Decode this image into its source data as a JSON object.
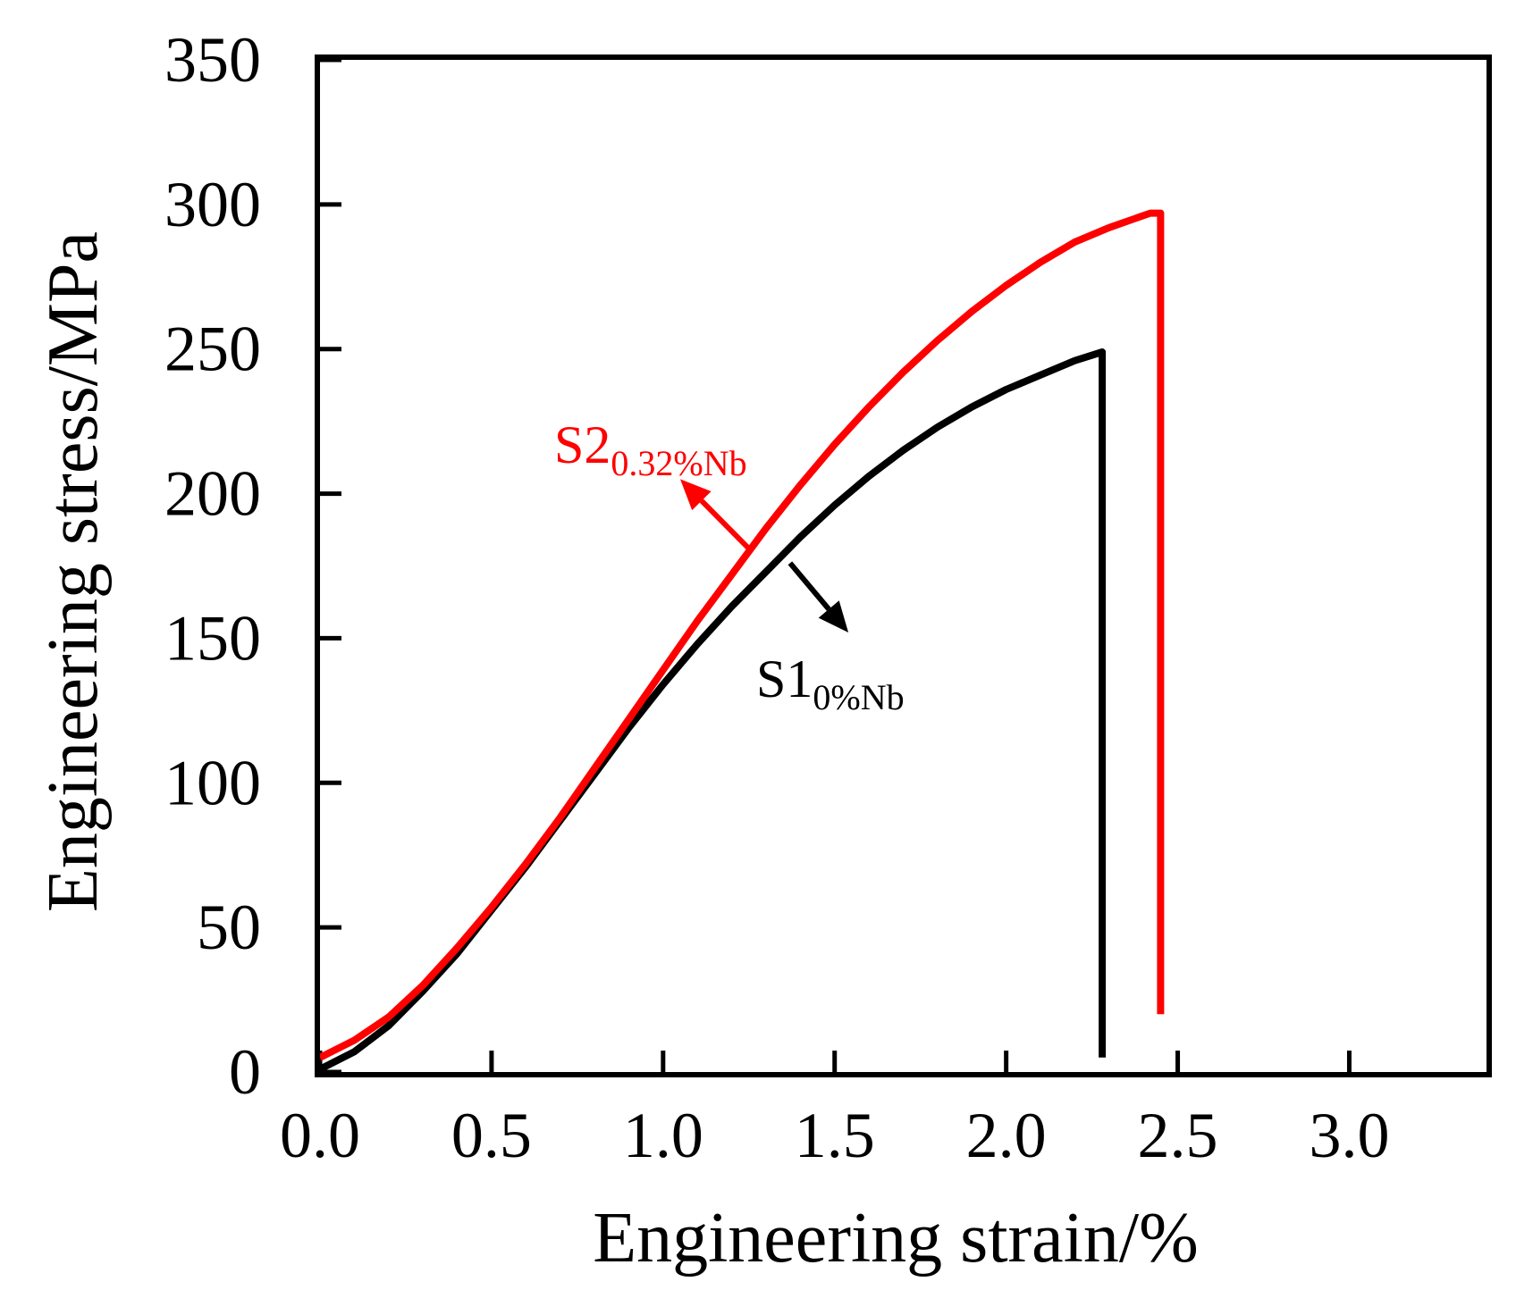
{
  "chart_data": {
    "type": "line",
    "title": "",
    "xlabel": "Engineering strain/%",
    "ylabel": "Engineering stress/MPa",
    "xlim": [
      0,
      3.4
    ],
    "ylim": [
      0,
      350
    ],
    "xticks": [
      0.0,
      0.5,
      1.0,
      1.5,
      2.0,
      2.5,
      3.0
    ],
    "xtick_labels": [
      "0.0",
      "0.5",
      "1.0",
      "1.5",
      "2.0",
      "2.5",
      "3.0"
    ],
    "yticks": [
      0,
      50,
      100,
      150,
      200,
      250,
      300,
      350
    ],
    "ytick_labels": [
      "0",
      "50",
      "100",
      "150",
      "200",
      "250",
      "300",
      "350"
    ],
    "grid": false,
    "series": [
      {
        "name": "S1",
        "subscript": "0%Nb",
        "color": "#000000",
        "points": [
          [
            0,
            1
          ],
          [
            0.1,
            7
          ],
          [
            0.2,
            16
          ],
          [
            0.3,
            28
          ],
          [
            0.4,
            41
          ],
          [
            0.5,
            56
          ],
          [
            0.6,
            71
          ],
          [
            0.7,
            87
          ],
          [
            0.8,
            103
          ],
          [
            0.9,
            119
          ],
          [
            1.0,
            134
          ],
          [
            1.1,
            148
          ],
          [
            1.2,
            161
          ],
          [
            1.3,
            173
          ],
          [
            1.4,
            185
          ],
          [
            1.5,
            196
          ],
          [
            1.6,
            206
          ],
          [
            1.7,
            215
          ],
          [
            1.8,
            223
          ],
          [
            1.9,
            230
          ],
          [
            2.0,
            236
          ],
          [
            2.1,
            241
          ],
          [
            2.2,
            246
          ],
          [
            2.28,
            249
          ],
          [
            2.28,
            5
          ]
        ]
      },
      {
        "name": "S2",
        "subscript": "0.32%Nb",
        "color": "#ff0000",
        "points": [
          [
            0,
            5
          ],
          [
            0.1,
            11
          ],
          [
            0.2,
            19
          ],
          [
            0.3,
            30
          ],
          [
            0.4,
            43
          ],
          [
            0.5,
            57
          ],
          [
            0.6,
            72
          ],
          [
            0.7,
            88
          ],
          [
            0.8,
            105
          ],
          [
            0.9,
            122
          ],
          [
            1.0,
            139
          ],
          [
            1.1,
            156
          ],
          [
            1.2,
            172
          ],
          [
            1.3,
            188
          ],
          [
            1.4,
            203
          ],
          [
            1.5,
            217
          ],
          [
            1.6,
            230
          ],
          [
            1.7,
            242
          ],
          [
            1.8,
            253
          ],
          [
            1.9,
            263
          ],
          [
            2.0,
            272
          ],
          [
            2.1,
            280
          ],
          [
            2.2,
            287
          ],
          [
            2.3,
            292
          ],
          [
            2.42,
            297
          ],
          [
            2.45,
            297
          ],
          [
            2.45,
            20
          ]
        ]
      }
    ],
    "annotations": [
      {
        "text": "S2",
        "subscript": "0.32%Nb",
        "color": "#ff0000",
        "arrow_from": [
          1.25,
          181
        ],
        "arrow_to": [
          1.05,
          205
        ]
      },
      {
        "text": "S1",
        "subscript": "0%Nb",
        "color": "#000000",
        "arrow_from": [
          1.37,
          176
        ],
        "arrow_to": [
          1.54,
          152
        ]
      }
    ]
  }
}
